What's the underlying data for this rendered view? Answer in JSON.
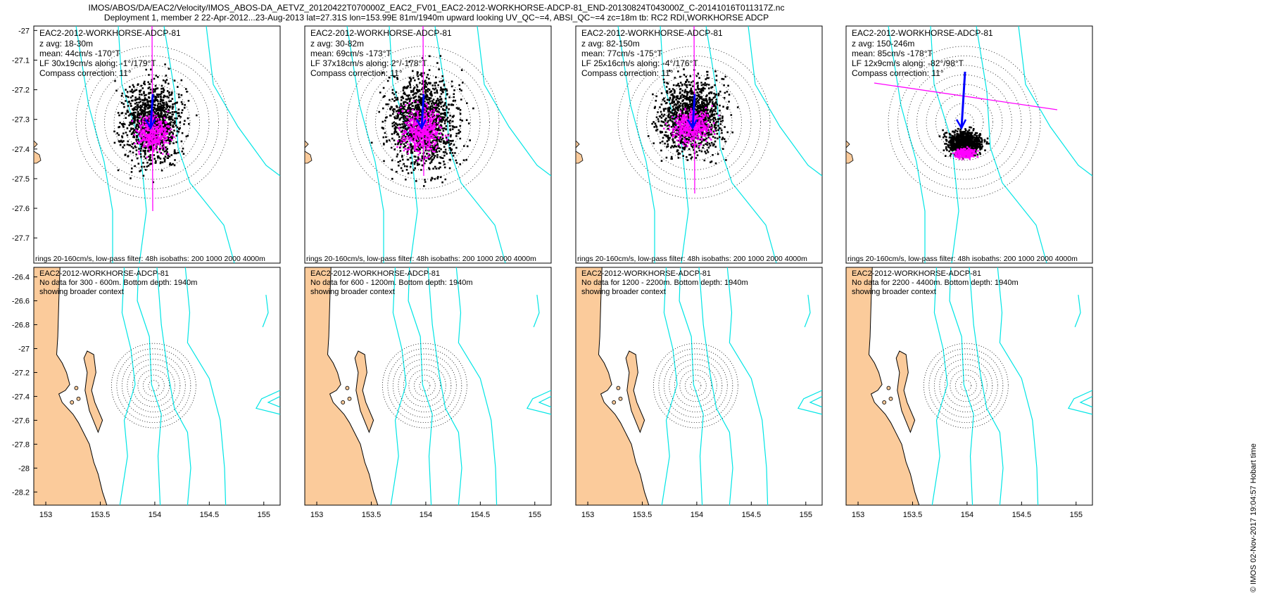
{
  "header": {
    "line1": "IMOS/ABOS/DA/EAC2/Velocity/IMOS_ABOS-DA_AETVZ_20120422T070000Z_EAC2_FV01_EAC2-2012-WORKHORSE-ADCP-81_END-20130824T043000Z_C-20141016T011317Z.nc",
    "line2": "Deployment 1, member 2 22-Apr-2012...23-Aug-2013 lat=27.31S lon=153.99E 81m/1940m upward looking UV_QC~=4, ABSI_QC~=4 zc=18m tb: RC2 RDI,WORKHORSE ADCP"
  },
  "credit": "© IMOS 02-Nov-2017 19:04:57 Hobart time",
  "colors": {
    "land": "#fbcb9b",
    "isobath": "#00e5e5",
    "scatter": "#000000",
    "lowpass": "#ff00ff",
    "mean_arrow": "#0000ff",
    "rings": "#000000"
  },
  "top_row": {
    "footer": "rings 20-160cm/s, low-pass filter: 48h isobaths: 200 1000 2000 4000m",
    "y_ticks": [
      "-27",
      "-27.1",
      "-27.2",
      "-27.3",
      "-27.4",
      "-27.5",
      "-27.6",
      "-27.7"
    ],
    "panels": [
      {
        "title": "EAC2-2012-WORKHORSE-ADCP-81",
        "z": "z avg: 18-30m",
        "mean": "mean: 44cm/s -170°T",
        "lf": "LF 30x19cm/s along: -1°/179°T",
        "compass": "Compass correction: 11°",
        "mean_speed": 44,
        "mean_dir": -170,
        "major": 30,
        "minor": 19,
        "along": -1
      },
      {
        "title": "EAC2-2012-WORKHORSE-ADCP-81",
        "z": "z avg: 30-82m",
        "mean": "mean: 69cm/s -173°T",
        "lf": "LF 37x18cm/s along: 2°/-178°T",
        "compass": "Compass correction: 11°",
        "mean_speed": 69,
        "mean_dir": -173,
        "major": 37,
        "minor": 18,
        "along": 2
      },
      {
        "title": "EAC2-2012-WORKHORSE-ADCP-81",
        "z": "z avg: 82-150m",
        "mean": "mean: 77cm/s -175°T",
        "lf": "LF 25x16cm/s along: -4°/176°T",
        "compass": "Compass correction: 11°",
        "mean_speed": 77,
        "mean_dir": -175,
        "major": 25,
        "minor": 16,
        "along": -4
      },
      {
        "title": "EAC2-2012-WORKHORSE-ADCP-81",
        "z": "z avg: 150-246m",
        "mean": "mean: 85cm/s -178°T",
        "lf": "LF 12x9cm/s along: -82°/98°T",
        "compass": "Compass correction: 11°",
        "mean_speed": 85,
        "mean_dir": -178,
        "major": 12,
        "minor": 9,
        "along": -82
      }
    ]
  },
  "bottom_row": {
    "x_ticks": [
      "153",
      "153.5",
      "154",
      "154.5",
      "155"
    ],
    "y_ticks": [
      "-26.4",
      "-26.6",
      "-26.8",
      "-27",
      "-27.2",
      "-27.4",
      "-27.6",
      "-27.8",
      "-28",
      "-28.2"
    ],
    "panels": [
      {
        "title": "EAC2-2012-WORKHORSE-ADCP-81",
        "nodata": "No data for 300 - 600m. Bottom depth: 1940m",
        "context": "showing broader context"
      },
      {
        "title": "EAC2-2012-WORKHORSE-ADCP-81",
        "nodata": "No data for 600 - 1200m. Bottom depth: 1940m",
        "context": "showing broader context"
      },
      {
        "title": "EAC2-2012-WORKHORSE-ADCP-81",
        "nodata": "No data for 1200 - 2200m. Bottom depth: 1940m",
        "context": "showing broader context"
      },
      {
        "title": "EAC2-2012-WORKHORSE-ADCP-81",
        "nodata": "No data for 2200 - 4400m. Bottom depth: 1940m",
        "context": "showing broader context"
      }
    ]
  }
}
